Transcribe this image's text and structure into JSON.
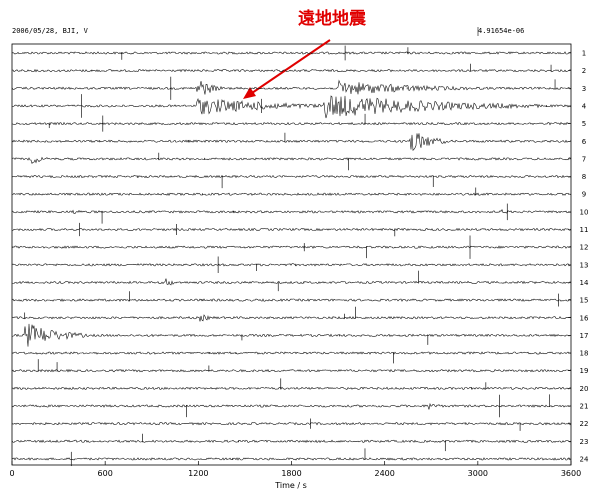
{
  "chart_data": {
    "type": "seismogram",
    "header_left": "2006/05/28, BJI, V",
    "header_right": "4.91654e-06",
    "annotation": "遠地地震",
    "x_label": "Time / s",
    "xlim": [
      0,
      3600
    ],
    "xticks": [
      0,
      600,
      1200,
      1800,
      2400,
      3000,
      3600
    ],
    "row_labels": [
      1,
      2,
      3,
      4,
      5,
      6,
      7,
      8,
      9,
      10,
      11,
      12,
      13,
      14,
      15,
      16,
      17,
      18,
      19,
      20,
      21,
      22,
      23,
      24
    ]
  }
}
